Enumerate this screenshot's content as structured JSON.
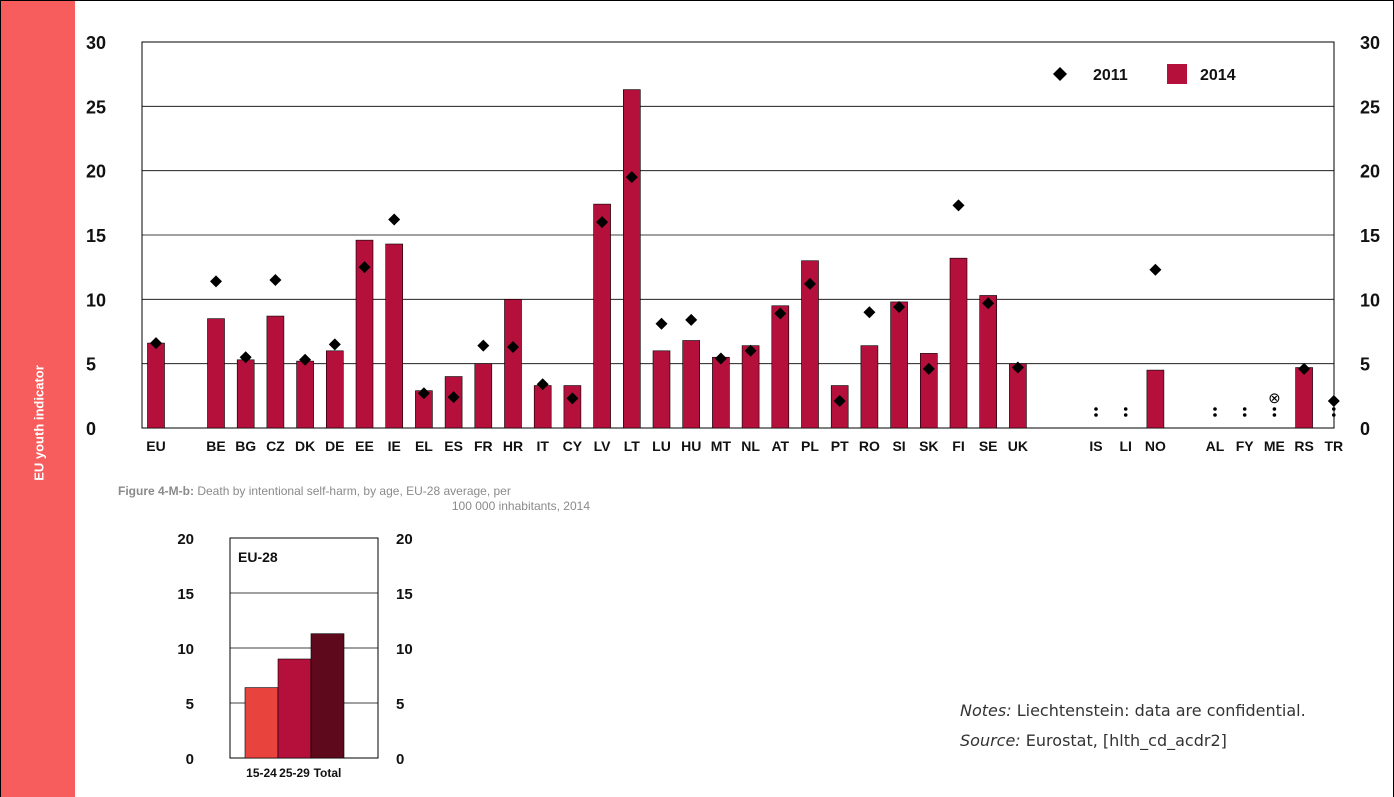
{
  "sidebar": {
    "label": "EU youth indicator"
  },
  "caption": {
    "label": "Figure 4-M-b:",
    "text_line1": "Death by intentional self-harm, by age, EU-28 average, per",
    "text_line2": "100 000 inhabitants, 2014"
  },
  "notes": {
    "notes_label": "Notes:",
    "notes_text": "Liechtenstein: data are confidential.",
    "source_label": "Source:",
    "source_text": "Eurostat, [hlth_cd_acdr2]"
  },
  "colors": {
    "bar_2014": "#b5103c",
    "marker_2011": "#000000",
    "sidebar": "#f75d5d",
    "small_15_24": "#e8433d",
    "small_25_29": "#b5103c",
    "small_total": "#5e0a1c"
  },
  "chart_data": [
    {
      "type": "bar",
      "title": "",
      "xlabel": "",
      "ylabel": "",
      "ylim": [
        0,
        30
      ],
      "yticks": [
        "0",
        "5",
        "10",
        "15",
        "20",
        "25",
        "30"
      ],
      "grid": true,
      "legend_position": "top-right",
      "categories": [
        "EU",
        "BE",
        "BG",
        "CZ",
        "DK",
        "DE",
        "EE",
        "IE",
        "EL",
        "ES",
        "FR",
        "HR",
        "IT",
        "CY",
        "LV",
        "LT",
        "LU",
        "HU",
        "MT",
        "NL",
        "AT",
        "PL",
        "PT",
        "RO",
        "SI",
        "SK",
        "FI",
        "SE",
        "UK",
        "IS",
        "LI",
        "NO",
        "AL",
        "FY",
        "ME",
        "RS",
        "TR"
      ],
      "series": [
        {
          "name": "2011",
          "kind": "marker",
          "values": [
            6.6,
            11.4,
            5.5,
            11.5,
            5.3,
            6.5,
            12.5,
            16.2,
            2.7,
            2.4,
            6.4,
            6.3,
            3.4,
            2.3,
            16.0,
            19.5,
            8.1,
            8.4,
            5.4,
            6.0,
            8.9,
            11.2,
            2.1,
            9.0,
            9.4,
            4.6,
            17.3,
            9.7,
            4.7,
            null,
            null,
            12.3,
            null,
            null,
            null,
            4.6,
            2.1
          ],
          "special": {
            "IS": ":",
            "LI": ":",
            "AL": ":",
            "FY": ":",
            "ME": ":"
          }
        },
        {
          "name": "2014",
          "kind": "bar",
          "values": [
            6.6,
            8.5,
            5.3,
            8.7,
            5.2,
            6.0,
            14.6,
            14.3,
            2.9,
            4.0,
            5.0,
            10.0,
            3.3,
            3.3,
            17.4,
            26.3,
            6.0,
            6.8,
            5.5,
            6.4,
            9.5,
            13.0,
            3.3,
            6.4,
            9.8,
            5.8,
            13.2,
            10.3,
            5.0,
            null,
            null,
            4.5,
            null,
            null,
            null,
            4.7,
            null
          ],
          "special": {
            "IS": ":",
            "LI": ":",
            "AL": ":",
            "FY": ":",
            "ME": "⊗",
            "TR": ":"
          }
        }
      ]
    },
    {
      "type": "bar",
      "title": "",
      "label": "EU-28",
      "xlabel": "",
      "ylabel": "",
      "ylim": [
        0,
        20
      ],
      "yticks": [
        "0",
        "5",
        "10",
        "15",
        "20"
      ],
      "grid": true,
      "categories": [
        "15-24",
        "25-29",
        "Total"
      ],
      "values": [
        6.4,
        9.0,
        11.3
      ]
    }
  ]
}
